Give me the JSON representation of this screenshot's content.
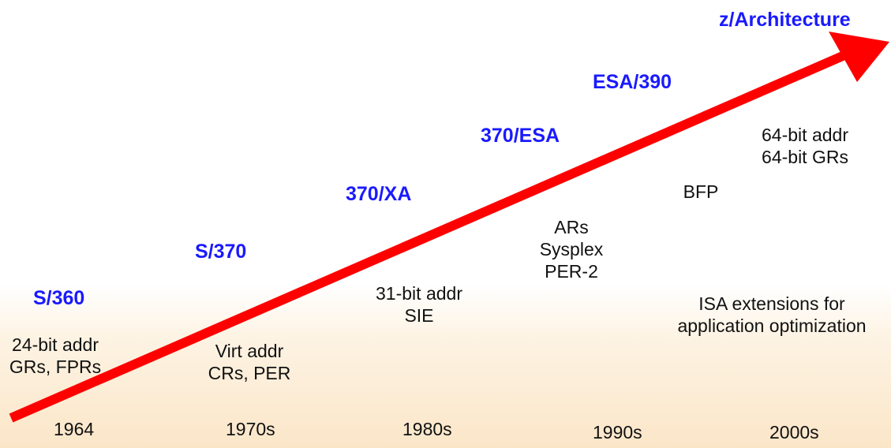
{
  "architectures": [
    {
      "label": "S/360"
    },
    {
      "label": "S/370"
    },
    {
      "label": "370/XA"
    },
    {
      "label": "370/ESA"
    },
    {
      "label": "ESA/390"
    },
    {
      "label": "z/Architecture"
    }
  ],
  "features": [
    {
      "lines": [
        "24-bit addr",
        "GRs, FPRs"
      ]
    },
    {
      "lines": [
        "Virt addr",
        "CRs, PER"
      ]
    },
    {
      "lines": [
        "31-bit addr",
        "SIE"
      ]
    },
    {
      "lines": [
        "ARs",
        "Sysplex",
        "PER-2"
      ]
    },
    {
      "lines": [
        "BFP"
      ]
    },
    {
      "lines": [
        "64-bit addr",
        "64-bit GRs"
      ]
    },
    {
      "lines": [
        "ISA extensions for",
        "application optimization"
      ]
    }
  ],
  "years": [
    {
      "label": "1964"
    },
    {
      "label": "1970s"
    },
    {
      "label": "1980s"
    },
    {
      "label": "1990s"
    },
    {
      "label": "2000s"
    }
  ],
  "colors": {
    "arrow": "#ff0000",
    "architecture_text": "#1a1aff",
    "feature_text": "#111111"
  }
}
